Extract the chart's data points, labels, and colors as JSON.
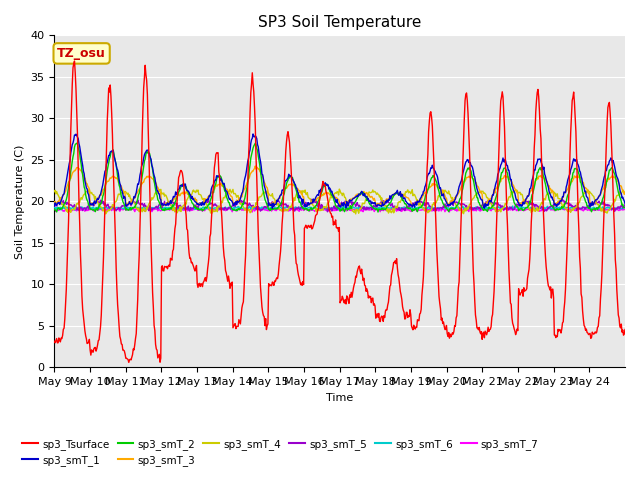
{
  "title": "SP3 Soil Temperature",
  "ylabel": "Soil Temperature (C)",
  "xlabel": "Time",
  "annotation": "TZ_osu",
  "ylim": [
    0,
    40
  ],
  "background_color": "#e8e8e8",
  "series_colors": {
    "sp3_Tsurface": "#ff0000",
    "sp3_smT_1": "#0000cc",
    "sp3_smT_2": "#00cc00",
    "sp3_smT_3": "#ffaa00",
    "sp3_smT_4": "#cccc00",
    "sp3_smT_5": "#9900cc",
    "sp3_smT_6": "#00cccc",
    "sp3_smT_7": "#ff00ff"
  },
  "xtick_labels": [
    "May 9",
    "May 10",
    "May 11",
    "May 12",
    "May 13",
    "May 14",
    "May 15",
    "May 16",
    "May 17",
    "May 18",
    "May 19",
    "May 20",
    "May 21",
    "May 22",
    "May 23",
    "May 24"
  ],
  "yticks": [
    0,
    5,
    10,
    15,
    20,
    25,
    30,
    35,
    40
  ],
  "n_days": 16,
  "pts_per_day": 48,
  "seed": 42
}
